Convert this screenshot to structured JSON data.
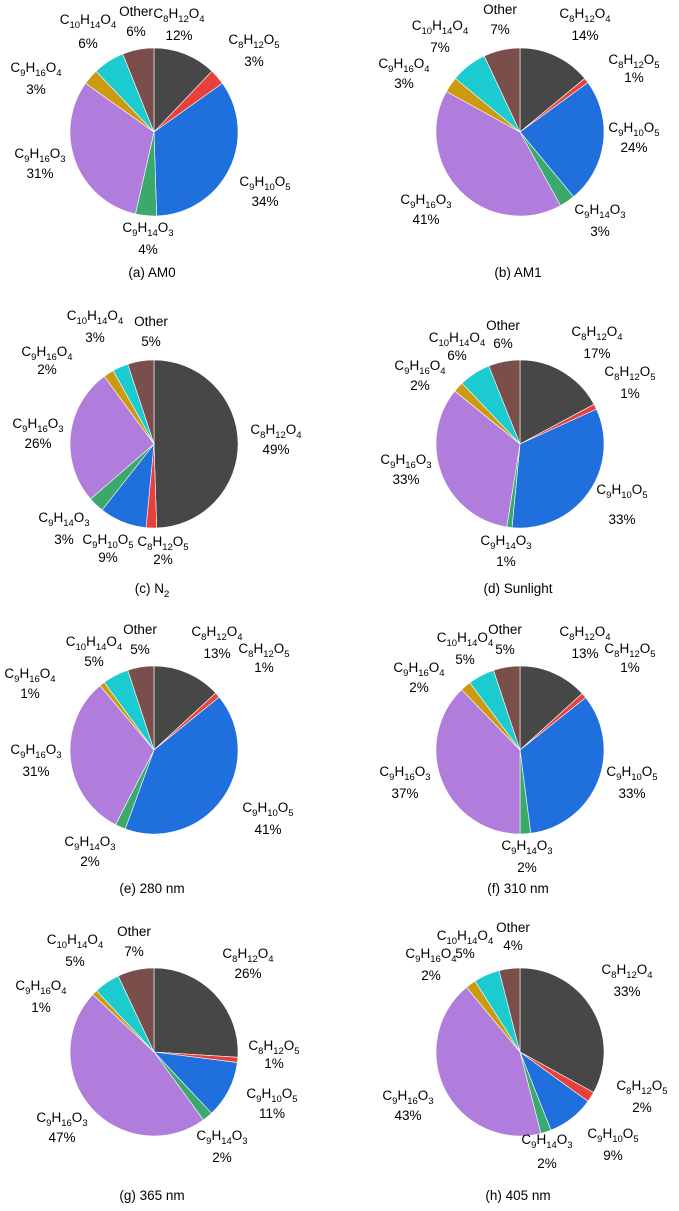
{
  "colors": {
    "C8H12O4": "#474747",
    "C8H12O5": "#e8413c",
    "C9H10O5": "#1f6fdc",
    "C9H14O3": "#3aa96b",
    "C9H16O3": "#b07ddc",
    "C9H16O4": "#cc9a0f",
    "C10H14O4": "#1ccbd0",
    "Other": "#7a4e4a"
  },
  "chart_data": [
    {
      "type": "pie",
      "caption": "(a) AM0",
      "slices": [
        {
          "name": "C8H12O4",
          "value": 12,
          "label": "12%"
        },
        {
          "name": "C8H12O5",
          "value": 3,
          "label": "3%"
        },
        {
          "name": "C9H10O5",
          "value": 34,
          "label": "34%"
        },
        {
          "name": "C9H14O3",
          "value": 4,
          "label": "4%"
        },
        {
          "name": "C9H16O3",
          "value": 31,
          "label": "31%"
        },
        {
          "name": "C9H16O4",
          "value": 3,
          "label": "3%"
        },
        {
          "name": "C10H14O4",
          "value": 6,
          "label": "6%"
        },
        {
          "name": "Other",
          "value": 6,
          "label": "6%"
        }
      ]
    },
    {
      "type": "pie",
      "caption": "(b) AM1",
      "slices": [
        {
          "name": "C8H12O4",
          "value": 14,
          "label": "14%"
        },
        {
          "name": "C8H12O5",
          "value": 1,
          "label": "1%"
        },
        {
          "name": "C9H10O5",
          "value": 24,
          "label": "24%"
        },
        {
          "name": "C9H14O3",
          "value": 3,
          "label": "3%"
        },
        {
          "name": "C9H16O3",
          "value": 41,
          "label": "41%"
        },
        {
          "name": "C9H16O4",
          "value": 3,
          "label": "3%"
        },
        {
          "name": "C10H14O4",
          "value": 7,
          "label": "7%"
        },
        {
          "name": "Other",
          "value": 7,
          "label": "7%"
        }
      ]
    },
    {
      "type": "pie",
      "caption": "(c) N2",
      "slices": [
        {
          "name": "C8H12O4",
          "value": 49,
          "label": "49%"
        },
        {
          "name": "C8H12O5",
          "value": 2,
          "label": "2%"
        },
        {
          "name": "C9H10O5",
          "value": 9,
          "label": "9%"
        },
        {
          "name": "C9H14O3",
          "value": 3,
          "label": "3%"
        },
        {
          "name": "C9H16O3",
          "value": 26,
          "label": "26%"
        },
        {
          "name": "C9H16O4",
          "value": 2,
          "label": "2%"
        },
        {
          "name": "C10H14O4",
          "value": 3,
          "label": "3%"
        },
        {
          "name": "Other",
          "value": 5,
          "label": "5%"
        }
      ]
    },
    {
      "type": "pie",
      "caption": "(d) Sunlight",
      "slices": [
        {
          "name": "C8H12O4",
          "value": 17,
          "label": "17%"
        },
        {
          "name": "C8H12O5",
          "value": 1,
          "label": "1%"
        },
        {
          "name": "C9H10O5",
          "value": 33,
          "label": "33%"
        },
        {
          "name": "C9H14O3",
          "value": 1,
          "label": "1%"
        },
        {
          "name": "C9H16O3",
          "value": 33,
          "label": "33%"
        },
        {
          "name": "C9H16O4",
          "value": 2,
          "label": "2%"
        },
        {
          "name": "C10H14O4",
          "value": 6,
          "label": "6%"
        },
        {
          "name": "Other",
          "value": 6,
          "label": "6%"
        }
      ]
    },
    {
      "type": "pie",
      "caption": "(e) 280 nm",
      "slices": [
        {
          "name": "C8H12O4",
          "value": 13,
          "label": "13%"
        },
        {
          "name": "C8H12O5",
          "value": 1,
          "label": "1%"
        },
        {
          "name": "C9H10O5",
          "value": 41,
          "label": "41%"
        },
        {
          "name": "C9H14O3",
          "value": 2,
          "label": "2%"
        },
        {
          "name": "C9H16O3",
          "value": 31,
          "label": "31%"
        },
        {
          "name": "C9H16O4",
          "value": 1,
          "label": "1%"
        },
        {
          "name": "C10H14O4",
          "value": 5,
          "label": "5%"
        },
        {
          "name": "Other",
          "value": 5,
          "label": "5%"
        }
      ]
    },
    {
      "type": "pie",
      "caption": "(f) 310 nm",
      "slices": [
        {
          "name": "C8H12O4",
          "value": 13,
          "label": "13%"
        },
        {
          "name": "C8H12O5",
          "value": 1,
          "label": "1%"
        },
        {
          "name": "C9H10O5",
          "value": 33,
          "label": "33%"
        },
        {
          "name": "C9H14O3",
          "value": 2,
          "label": "2%"
        },
        {
          "name": "C9H16O3",
          "value": 37,
          "label": "37%"
        },
        {
          "name": "C9H16O4",
          "value": 2,
          "label": "2%"
        },
        {
          "name": "C10H14O4",
          "value": 5,
          "label": "5%"
        },
        {
          "name": "Other",
          "value": 5,
          "label": "5%"
        }
      ]
    },
    {
      "type": "pie",
      "caption": "(g) 365 nm",
      "slices": [
        {
          "name": "C8H12O4",
          "value": 26,
          "label": "26%"
        },
        {
          "name": "C8H12O5",
          "value": 1,
          "label": "1%"
        },
        {
          "name": "C9H10O5",
          "value": 11,
          "label": "11%"
        },
        {
          "name": "C9H14O3",
          "value": 2,
          "label": "2%"
        },
        {
          "name": "C9H16O3",
          "value": 47,
          "label": "47%"
        },
        {
          "name": "C9H16O4",
          "value": 1,
          "label": "1%"
        },
        {
          "name": "C10H14O4",
          "value": 5,
          "label": "5%"
        },
        {
          "name": "Other",
          "value": 7,
          "label": "7%"
        }
      ]
    },
    {
      "type": "pie",
      "caption": "(h) 405 nm",
      "slices": [
        {
          "name": "C8H12O4",
          "value": 33,
          "label": "33%"
        },
        {
          "name": "C8H12O5",
          "value": 2,
          "label": "2%"
        },
        {
          "name": "C9H10O5",
          "value": 9,
          "label": "9%"
        },
        {
          "name": "C9H14O3",
          "value": 2,
          "label": "2%"
        },
        {
          "name": "C9H16O3",
          "value": 43,
          "label": "43%"
        },
        {
          "name": "C9H16O4",
          "value": 2,
          "label": "2%"
        },
        {
          "name": "C10H14O4",
          "value": 5,
          "label": "5%"
        },
        {
          "name": "Other",
          "value": 4,
          "label": "4%"
        }
      ]
    }
  ]
}
